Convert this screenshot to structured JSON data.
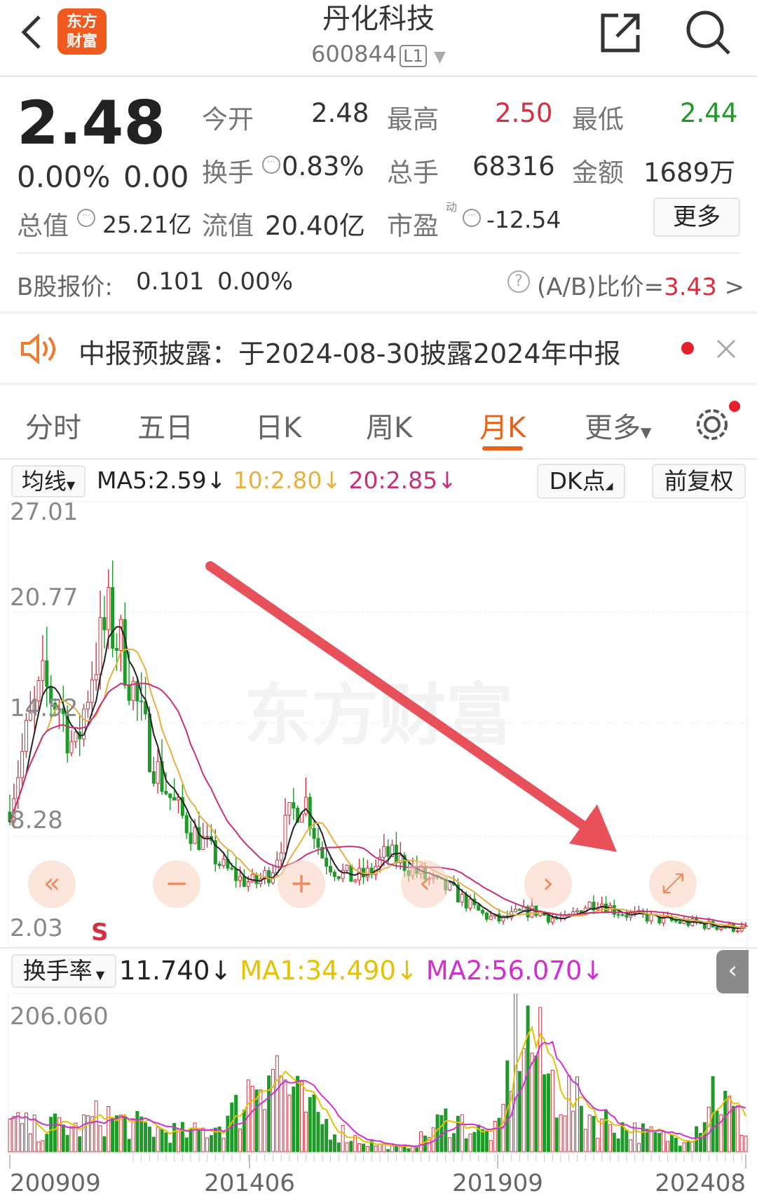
{
  "header": {
    "title": "丹化科技",
    "code": "600844",
    "level": "L1",
    "logo_line1": "东方",
    "logo_line2": "财富"
  },
  "quote": {
    "price": "2.48",
    "change_pct": "0.00%",
    "change": "0.00",
    "open_label": "今开",
    "open": "2.48",
    "high_label": "最高",
    "high": "2.50",
    "low_label": "最低",
    "low": "2.44",
    "turnover_label": "换手",
    "turnover": "0.83%",
    "volume_label": "总手",
    "volume": "68316",
    "amount_label": "金额",
    "amount": "1689万",
    "mktcap_label": "总值",
    "mktcap": "25.21亿",
    "float_label": "流值",
    "float_cap": "20.40亿",
    "pe_label": "市盈",
    "pe_sup": "动",
    "pe": "-12.54",
    "more": "更多"
  },
  "bshare": {
    "label": "B股报价:",
    "price": "0.101",
    "pct": "0.00%",
    "ratio_label": "(A/B)比价=",
    "ratio": "3.43"
  },
  "notice": {
    "text": "中报预披露：于2024-08-30披露2024年中报"
  },
  "tabs": [
    {
      "label": "分时"
    },
    {
      "label": "五日"
    },
    {
      "label": "日K"
    },
    {
      "label": "周K"
    },
    {
      "label": "月K",
      "active": true
    },
    {
      "label": "更多"
    }
  ],
  "ma_bar": {
    "selector": "均线",
    "ma5": "MA5:2.59↓",
    "ma10": "10:2.80↓",
    "ma20": "20:2.85↓",
    "dk": "DK点",
    "adjust": "前复权"
  },
  "price_axis": {
    "ticks": [
      "27.01",
      "20.77",
      "14.52",
      "8.28",
      "2.03"
    ],
    "max": 27.01,
    "min": 2.03
  },
  "watermark": "东方财富",
  "turnover_bar": {
    "selector": "换手率",
    "value": "11.740↓",
    "ma1": "MA1:34.490↓",
    "ma2": "MA2:56.070↓",
    "top": "206.060"
  },
  "x_labels": [
    "200909",
    "201406",
    "201909",
    "202408"
  ],
  "colors": {
    "up": "#d63040",
    "down": "#1e9a28",
    "ma5": "#222222",
    "ma10": "#e8b040",
    "ma20": "#c8307a",
    "tma1": "#e6c200",
    "tma2": "#d030d0",
    "accent": "#e8621a"
  },
  "chart_data": {
    "type": "candlestick",
    "period": "monthly",
    "range": [
      "200909",
      "202408"
    ],
    "close_path": [
      10,
      14,
      17,
      16,
      13,
      18,
      21,
      19,
      15,
      12,
      10,
      8.5,
      7.5,
      6.2,
      5.5,
      5.2,
      6.0,
      9.0,
      10.5,
      7.0,
      6.0,
      5.5,
      5.8,
      7.0,
      6.5,
      5.8,
      5.2,
      4.8,
      4.0,
      3.3,
      3.0,
      3.4,
      3.6,
      3.2,
      3.0,
      3.8,
      4.2,
      3.6,
      3.3,
      3.2,
      3.0,
      2.9,
      2.8,
      2.7,
      2.6,
      2.48
    ],
    "turnover_path": [
      40,
      35,
      30,
      38,
      30,
      45,
      50,
      40,
      35,
      30,
      28,
      25,
      30,
      40,
      60,
      110,
      130,
      90,
      60,
      45,
      30,
      20,
      12,
      8,
      5,
      15,
      35,
      50,
      35,
      25,
      30,
      200,
      150,
      100,
      80,
      60,
      45,
      40,
      30,
      25,
      20,
      20,
      35,
      90,
      60,
      30
    ]
  }
}
